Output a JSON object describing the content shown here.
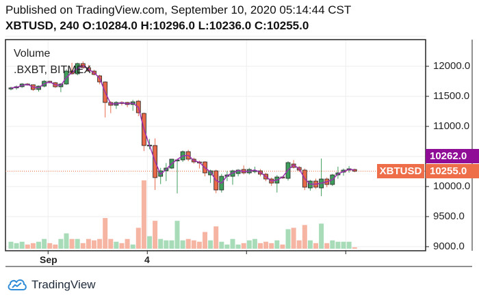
{
  "header": {
    "published": "Published on TradingView.com, September 10, 2020 05:14:44 CST",
    "symbol": "XBTUSD, 240",
    "ohlc": {
      "o_label": "O:",
      "o": "10284.0",
      "h_label": "H:",
      "h": "10296.0",
      "l_label": "L:",
      "l": "10236.0",
      "c_label": "C:",
      "c": "10255.0"
    }
  },
  "legend": {
    "volume": "Volume",
    "source": ".BXBT, BITMEX"
  },
  "badges": {
    "ma_value": "10262.0",
    "symbol": "XBTUSD",
    "last_price": "10255.0"
  },
  "colors": {
    "up": "#3e9e5c",
    "down": "#e8684a",
    "ma": "#9b2fae",
    "ma_badge": "#8e0c96",
    "price_badge": "#ee6e4a",
    "vol_up": "#a8dcb9",
    "vol_down": "#f6b4a2"
  },
  "logo": {
    "text": "TradingView",
    "icon": "tradingview-cloud-icon"
  },
  "chart_data": {
    "type": "candlestick",
    "title": "",
    "interval": "240",
    "ylim": [
      8950,
      12650
    ],
    "yticks": [
      "12000.0",
      "11500.0",
      "11000.0",
      "10000.0",
      "9500.0",
      "9000.0"
    ],
    "yticks_values": [
      12000,
      11500,
      11000,
      10000,
      9500,
      9000
    ],
    "xticks": [
      {
        "label": "Sep",
        "index": 6.7
      },
      {
        "label": "4",
        "index": 24.6
      },
      {
        "label": "",
        "index": 42.5
      },
      {
        "label": "",
        "index": 60.4
      }
    ],
    "grid": true,
    "moving_average": true,
    "ohlc": [
      [
        11625,
        11660,
        11600,
        11640
      ],
      [
        11640,
        11680,
        11610,
        11660
      ],
      [
        11660,
        11720,
        11640,
        11705
      ],
      [
        11705,
        11720,
        11680,
        11693
      ],
      [
        11693,
        11700,
        11590,
        11614
      ],
      [
        11614,
        11680,
        11580,
        11670
      ],
      [
        11670,
        11770,
        11650,
        11750
      ],
      [
        11750,
        11760,
        11720,
        11727
      ],
      [
        11727,
        11740,
        11640,
        11659
      ],
      [
        11659,
        11720,
        11570,
        11705
      ],
      [
        11705,
        11950,
        11690,
        11920
      ],
      [
        11920,
        12057,
        11860,
        11875
      ],
      [
        11875,
        12060,
        11850,
        12045
      ],
      [
        12045,
        12080,
        11960,
        11977
      ],
      [
        11977,
        12020,
        11940,
        11920
      ],
      [
        11920,
        11940,
        11850,
        11864
      ],
      [
        11841,
        11860,
        11700,
        11739
      ],
      [
        11739,
        11750,
        11150,
        11398
      ],
      [
        11398,
        11420,
        11220,
        11352
      ],
      [
        11352,
        11420,
        11290,
        11398
      ],
      [
        11398,
        11420,
        11350,
        11390
      ],
      [
        11398,
        11410,
        11320,
        11364
      ],
      [
        11364,
        11440,
        11260,
        11409
      ],
      [
        11420,
        11440,
        11170,
        11227
      ],
      [
        11216,
        11230,
        10590,
        10682
      ],
      [
        10682,
        10790,
        10620,
        10690
      ],
      [
        10682,
        10800,
        9943,
        10148
      ],
      [
        10170,
        10310,
        10040,
        10261
      ],
      [
        10261,
        10390,
        10090,
        10307
      ],
      [
        10307,
        10460,
        10290,
        10455
      ],
      [
        10443,
        10460,
        9886,
        10443
      ],
      [
        10443,
        10600,
        10410,
        10580
      ],
      [
        10580,
        10610,
        10420,
        10455
      ],
      [
        10455,
        10480,
        10380,
        10409
      ],
      [
        10409,
        10430,
        10300,
        10398
      ],
      [
        10409,
        10420,
        10170,
        10227
      ],
      [
        10193,
        10280,
        10060,
        10261
      ],
      [
        10261,
        10280,
        9890,
        9943
      ],
      [
        9943,
        10210,
        9900,
        10170
      ],
      [
        10170,
        10260,
        10090,
        10193
      ],
      [
        10170,
        10280,
        10030,
        10261
      ],
      [
        10216,
        10290,
        10170,
        10273
      ],
      [
        10284,
        10350,
        10200,
        10227
      ],
      [
        10227,
        10310,
        10200,
        10284
      ],
      [
        10261,
        10330,
        10220,
        10265
      ],
      [
        10261,
        10290,
        10170,
        10205
      ],
      [
        10205,
        10230,
        10090,
        10125
      ],
      [
        10125,
        10150,
        10010,
        10057
      ],
      [
        10057,
        10190,
        9900,
        10159
      ],
      [
        10159,
        10170,
        10130,
        10155
      ],
      [
        10136,
        10420,
        10100,
        10398
      ],
      [
        10375,
        10440,
        10300,
        10318
      ],
      [
        10318,
        10340,
        10240,
        10273
      ],
      [
        10273,
        10300,
        9940,
        9989
      ],
      [
        9977,
        10110,
        9930,
        10091
      ],
      [
        10091,
        10130,
        9960,
        9989
      ],
      [
        9977,
        10466,
        9841,
        10125
      ],
      [
        10125,
        10150,
        9990,
        10034
      ],
      [
        10034,
        10210,
        10010,
        10193
      ],
      [
        10193,
        10330,
        10130,
        10227
      ],
      [
        10239,
        10300,
        10180,
        10273
      ],
      [
        10273,
        10340,
        10230,
        10295
      ],
      [
        10284,
        10296,
        10236,
        10255
      ]
    ],
    "volume": [
      10,
      8,
      10,
      6,
      8,
      10,
      14,
      8,
      6,
      14,
      22,
      14,
      14,
      8,
      14,
      12,
      14,
      44,
      14,
      10,
      8,
      14,
      6,
      30,
      98,
      18,
      40,
      14,
      12,
      12,
      40,
      12,
      14,
      12,
      10,
      24,
      12,
      32,
      10,
      6,
      14,
      6,
      8,
      12,
      14,
      8,
      10,
      8,
      12,
      6,
      28,
      30,
      12,
      34,
      12,
      8,
      36,
      8,
      12,
      10,
      10,
      10,
      2
    ]
  }
}
